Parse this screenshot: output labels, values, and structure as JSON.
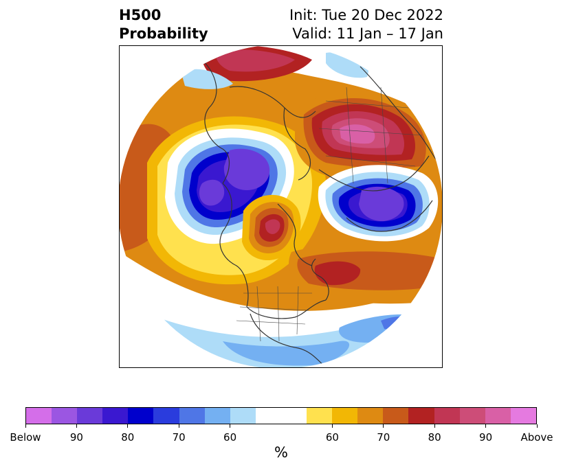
{
  "title": {
    "left_line1": "H500",
    "left_line2": "Probability",
    "right_line1": "Init: Tue 20 Dec 2022",
    "right_line2": "Valid: 11 Jan – 17 Jan"
  },
  "colorbar": {
    "colors": [
      "#d46ee9",
      "#9b56e2",
      "#6a3ad9",
      "#3a18d0",
      "#0000cc",
      "#2a3cdd",
      "#4f76e6",
      "#74b0f2",
      "#aedcf8",
      "#ffffff",
      "#ffffff",
      "#ffe14e",
      "#f2b705",
      "#de8a12",
      "#c85a1a",
      "#b22222",
      "#c13654",
      "#cd4d78",
      "#d960a6",
      "#e57ae0"
    ],
    "tick_labels": [
      "Below",
      "90",
      "80",
      "70",
      "60",
      "60",
      "70",
      "80",
      "90",
      "Above"
    ],
    "unit": "%"
  },
  "map": {
    "projection": "north-polar-stereographic",
    "features": [
      "positive-anomaly-north-atlantic",
      "positive-anomaly-eurasia",
      "negative-anomaly-north-pacific",
      "negative-anomaly-siberia",
      "positive-anomaly-arctic-canada",
      "negative-anomaly-southern-us"
    ]
  }
}
